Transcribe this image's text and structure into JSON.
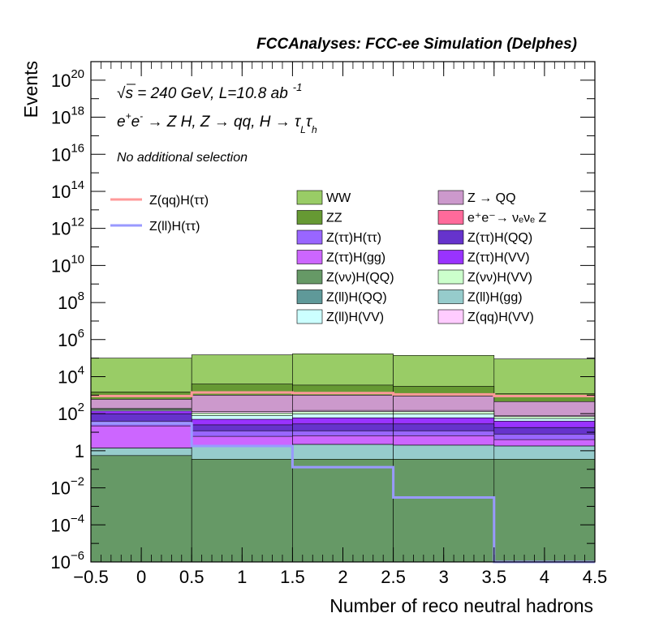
{
  "chart_data": {
    "type": "histogram",
    "title": "FCCAnalyses: FCC-ee Simulation (Delphes)",
    "xlabel": "Number of reco neutral hadrons",
    "ylabel": "Events",
    "xlim": [
      -0.5,
      4.5
    ],
    "ylim": [
      1e-06,
      1e+21
    ],
    "log_y": true,
    "grid": false,
    "legend_placement": "top",
    "annotations": {
      "sqrt_symbol": "√",
      "s": "s",
      "energy": " = 240 GeV, L=10.8 ab",
      "lumi_exp": "-1",
      "process_a": "e",
      "process_b": "e",
      "process_c": " → Z H, Z  → qq, H  → τ",
      "process_d": "τ",
      "sup_plus": "+",
      "sup_minus": "-",
      "sub_L": "L",
      "sub_h": "h",
      "selection": "No additional selection"
    },
    "x_ticks": [
      -0.5,
      0,
      0.5,
      1,
      1.5,
      2,
      2.5,
      3,
      3.5,
      4,
      4.5
    ],
    "x_tick_labels": [
      "−0.5",
      "0",
      "0.5",
      "1",
      "1.5",
      "2",
      "2.5",
      "3",
      "3.5",
      "4",
      "4.5"
    ],
    "y_ticks": [
      {
        "exp": -6,
        "base": "10",
        "sup": "−6"
      },
      {
        "exp": -4,
        "base": "10",
        "sup": "−4"
      },
      {
        "exp": -2,
        "base": "10",
        "sup": "−2"
      },
      {
        "exp": 0,
        "base": "1",
        "sup": ""
      },
      {
        "exp": 2,
        "base": "10",
        "sup": "2"
      },
      {
        "exp": 4,
        "base": "10",
        "sup": "4"
      },
      {
        "exp": 6,
        "base": "10",
        "sup": "6"
      },
      {
        "exp": 8,
        "base": "10",
        "sup": "8"
      },
      {
        "exp": 10,
        "base": "10",
        "sup": "10"
      },
      {
        "exp": 12,
        "base": "10",
        "sup": "12"
      },
      {
        "exp": 14,
        "base": "10",
        "sup": "14"
      },
      {
        "exp": 16,
        "base": "10",
        "sup": "16"
      },
      {
        "exp": 18,
        "base": "10",
        "sup": "18"
      },
      {
        "exp": 20,
        "base": "10",
        "sup": "20"
      }
    ],
    "bins": [
      0,
      1,
      2,
      3,
      4
    ],
    "stack": [
      {
        "name": "Z(νν)H(QQ)",
        "color": "#669966",
        "cumulative": [
          0.55,
          0.35,
          0.35,
          0.35,
          0.35
        ]
      },
      {
        "name": "e⁺e⁻→ νₑνₑ Z",
        "color": "#ff6a9b",
        "cumulative": [
          0.55,
          0.35,
          0.35,
          0.35,
          0.35
        ]
      },
      {
        "name": "Z(ll)H(gg)",
        "color": "#96cccc",
        "cumulative": [
          1.4,
          2.0,
          2.2,
          2.0,
          1.8
        ]
      },
      {
        "name": "Z(ll)H(QQ)",
        "color": "#5f9999",
        "cumulative": [
          1.4,
          2.0,
          2.2,
          2.0,
          1.8
        ]
      },
      {
        "name": "Z(ττ)H(gg)",
        "color": "#cc66ff",
        "cumulative": [
          22,
          6,
          6.5,
          6.5,
          4
        ]
      },
      {
        "name": "Z(ττ)H(ττ)",
        "color": "#9966ff",
        "cumulative": [
          40,
          12,
          12,
          12,
          8
        ]
      },
      {
        "name": "Z(ττ)H(QQ)",
        "color": "#6633cc",
        "cumulative": [
          100,
          25,
          28,
          28,
          18
        ]
      },
      {
        "name": "Z(ττ)H(VV)",
        "color": "#9933ff",
        "cumulative": [
          140,
          50,
          60,
          60,
          40
        ]
      },
      {
        "name": "Z(ll)H(VV)",
        "color": "#ccffff",
        "cumulative": [
          160,
          80,
          95,
          95,
          55
        ]
      },
      {
        "name": "Z(νν)H(VV)",
        "color": "#ccffcc",
        "cumulative": [
          180,
          110,
          130,
          130,
          70
        ]
      },
      {
        "name": "Z(qq)H(VV)",
        "color": "#ffccff",
        "cumulative": [
          200,
          130,
          150,
          150,
          80
        ]
      },
      {
        "name": "Z → QQ",
        "color": "#cc99cc",
        "cumulative": [
          600,
          1000,
          1000,
          900,
          450
        ]
      },
      {
        "name": "ZZ",
        "color": "#669933",
        "cumulative": [
          1500,
          4000,
          3500,
          3000,
          1200
        ]
      },
      {
        "name": "WW",
        "color": "#99cc66",
        "cumulative": [
          100000,
          150000,
          170000,
          140000,
          90000
        ]
      }
    ],
    "signals": [
      {
        "name": "Z(qq)H(ττ)",
        "color": "#ff9999",
        "values": [
          900,
          1400,
          1300,
          1100,
          900
        ]
      },
      {
        "name": "Z(ll)H(ττ)",
        "color": "#9999ff",
        "values": [
          30,
          1.8,
          0.13,
          0.003,
          1e-06
        ]
      }
    ],
    "legend_columns": [
      [
        "WW",
        "ZZ",
        "Z(ττ)H(ττ)",
        "Z(ττ)H(gg)",
        "Z(νν)H(QQ)",
        "Z(ll)H(QQ)",
        "Z(ll)H(VV)"
      ],
      [
        "Z → QQ",
        "e⁺e⁻→ νₑνₑ Z",
        "Z(ττ)H(QQ)",
        "Z(ττ)H(VV)",
        "Z(νν)H(VV)",
        "Z(ll)H(gg)",
        "Z(qq)H(VV)"
      ]
    ]
  }
}
